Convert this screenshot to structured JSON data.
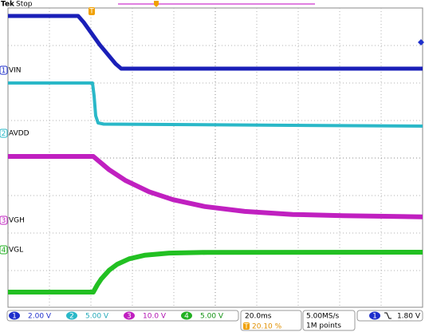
{
  "header": {
    "brand": "Tek",
    "status": "Stop",
    "trigger_marker": "T"
  },
  "channels": [
    {
      "marker": "1",
      "label": "VIN",
      "scale": "2.00 V"
    },
    {
      "marker": "2",
      "label": "AVDD",
      "scale": "5.00 V"
    },
    {
      "marker": "3",
      "label": "VGH",
      "scale": "10.0 V"
    },
    {
      "marker": "4",
      "label": "VGL",
      "scale": "5.00 V"
    }
  ],
  "timebase": {
    "scale": "20.0ms",
    "trigger_position": "20.10 %"
  },
  "acquisition": {
    "sample_rate": "5.00MS/s",
    "record_length": "1M points"
  },
  "trigger": {
    "source": "1",
    "level": "1.80 V"
  }
}
